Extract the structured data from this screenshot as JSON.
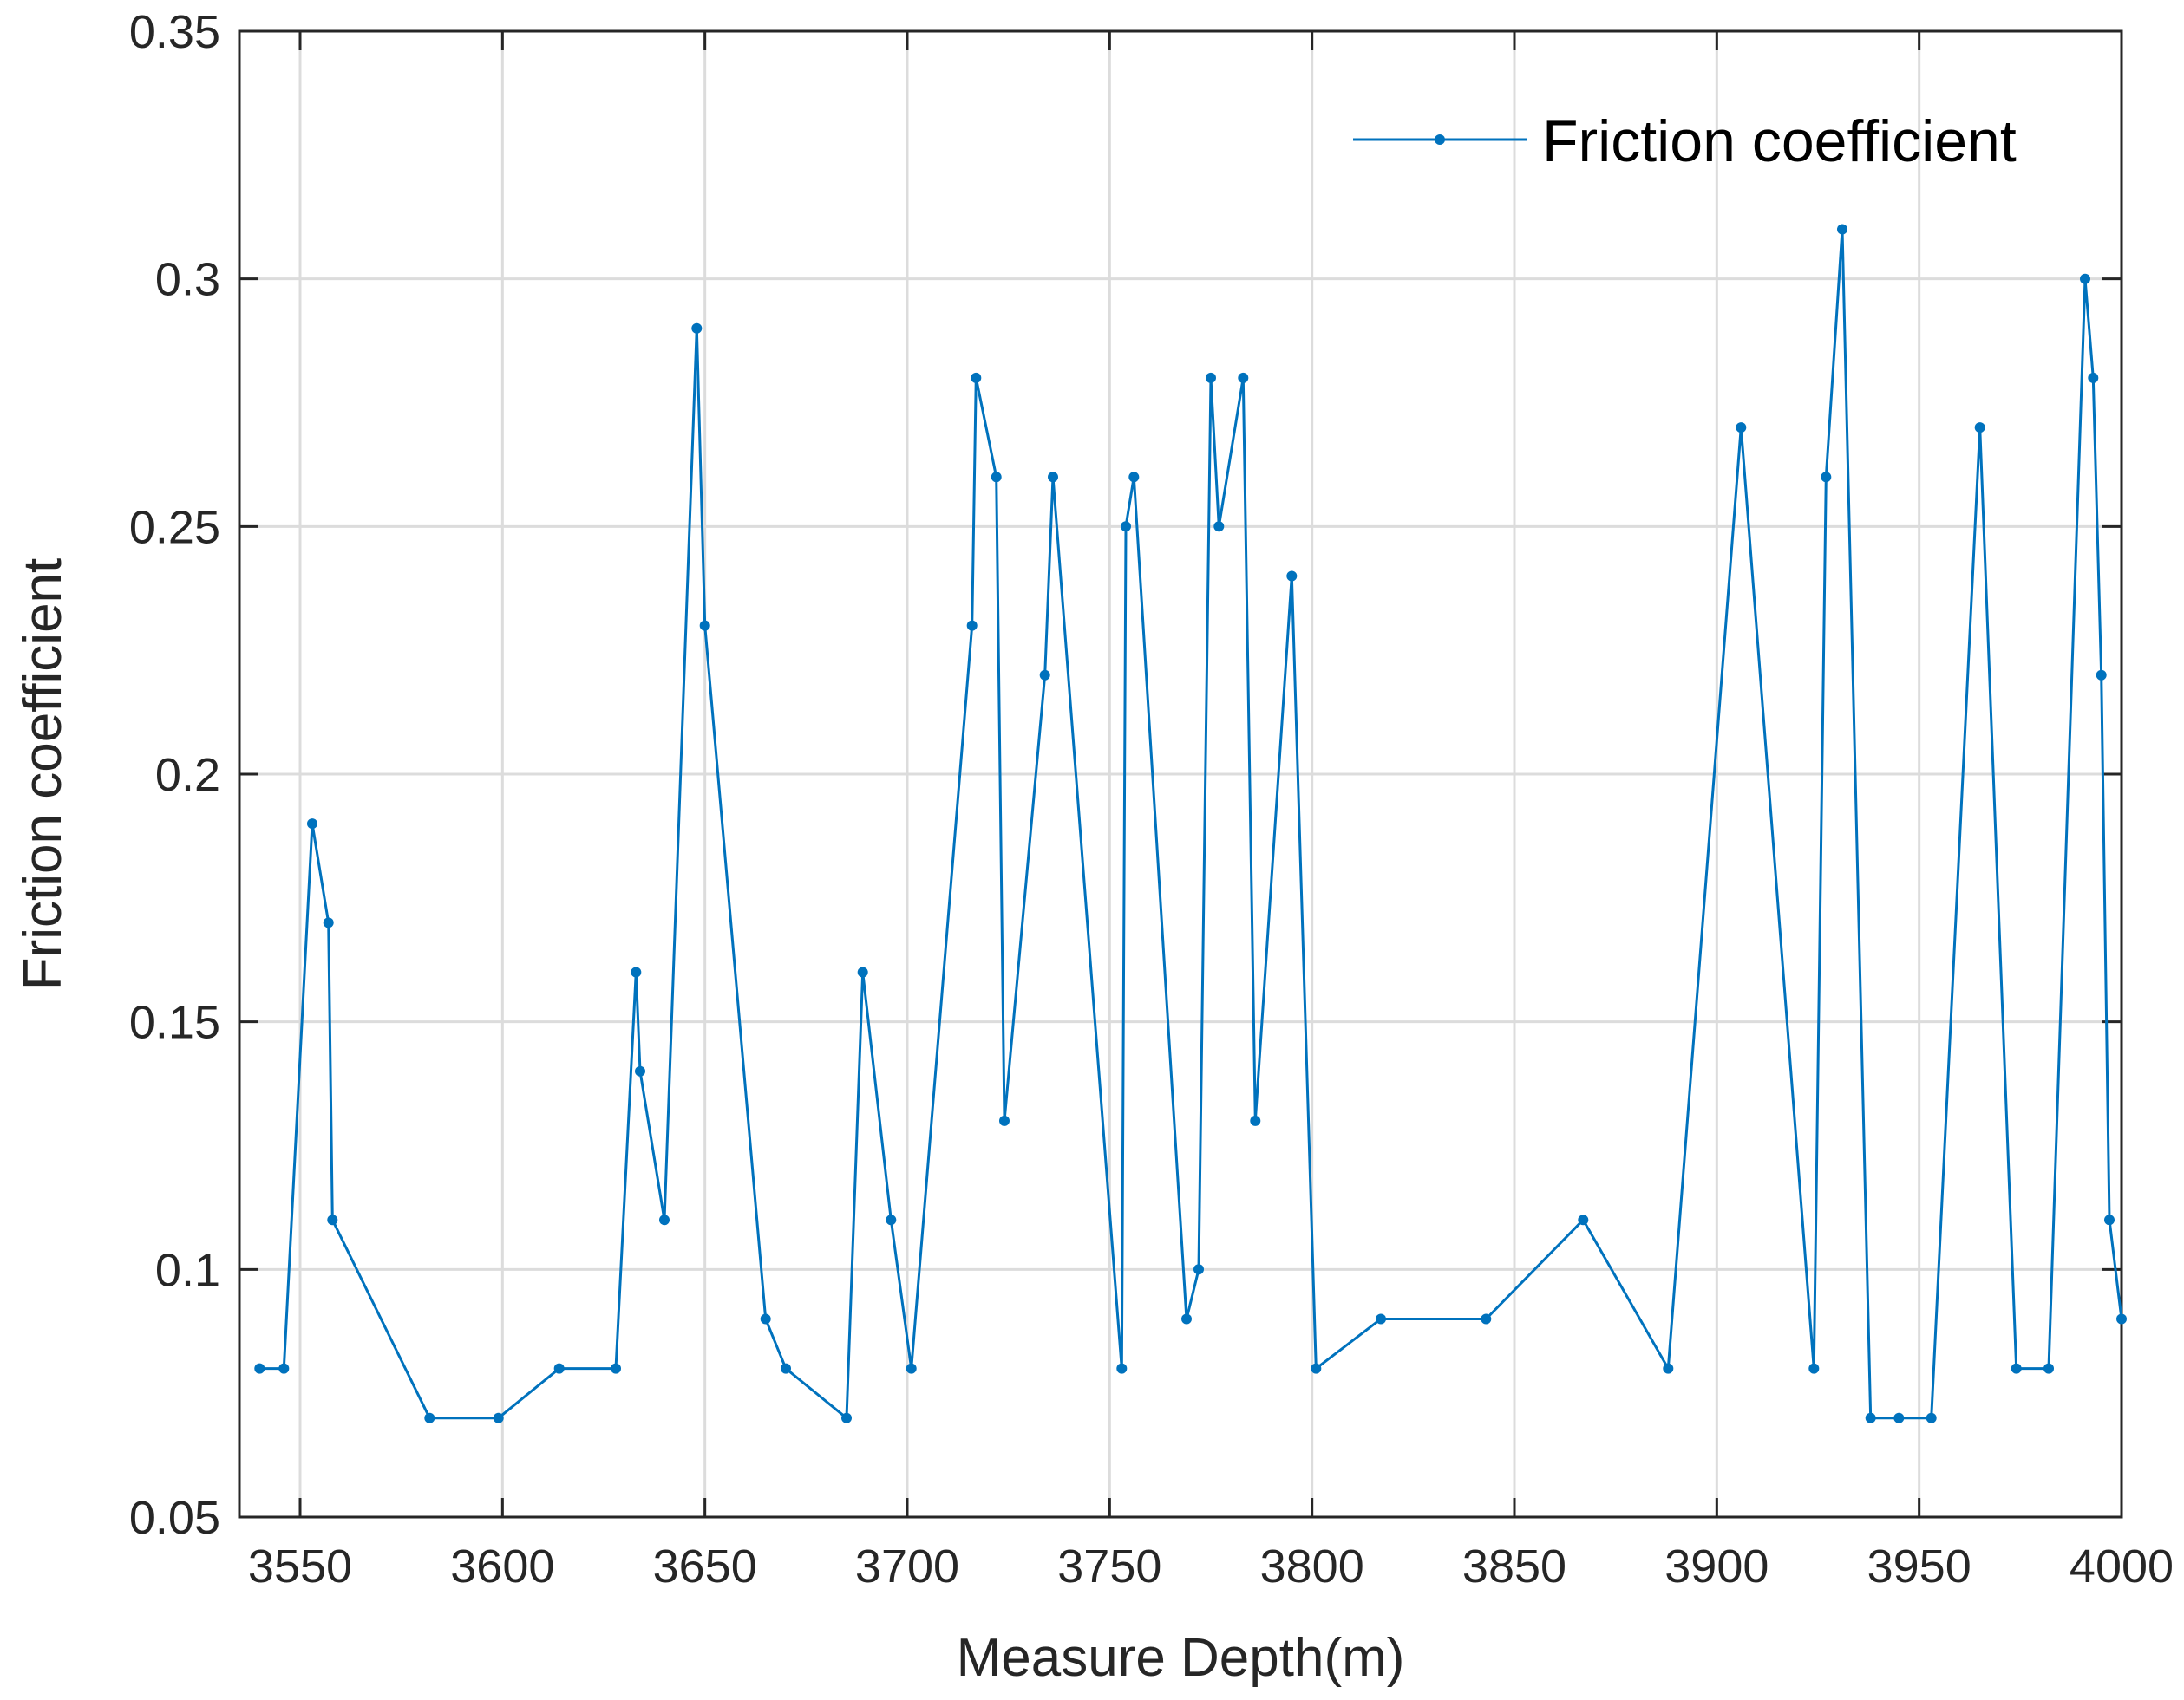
{
  "chart_data": {
    "type": "line",
    "xlabel": "Measure Depth(m)",
    "ylabel": "Friction coefficient",
    "xlim": [
      3535,
      4000
    ],
    "ylim": [
      0.05,
      0.35
    ],
    "xticks": [
      3550,
      3600,
      3650,
      3700,
      3750,
      3800,
      3850,
      3900,
      3950,
      4000
    ],
    "yticks": [
      0.05,
      0.1,
      0.15,
      0.2,
      0.25,
      0.3,
      0.35
    ],
    "xtick_labels": [
      "3550",
      "3600",
      "3650",
      "3700",
      "3750",
      "3800",
      "3850",
      "3900",
      "3950",
      "4000"
    ],
    "ytick_labels": [
      "0.05",
      "0.1",
      "0.15",
      "0.2",
      "0.25",
      "0.3",
      "0.35"
    ],
    "grid": true,
    "legend_position": "top-right",
    "series": [
      {
        "name": "Friction coefficient",
        "color": "#0072bd",
        "marker": "dot",
        "x": [
          3540,
          3546,
          3553,
          3557,
          3558,
          3582,
          3599,
          3614,
          3628,
          3633,
          3634,
          3640,
          3648,
          3650,
          3665,
          3670,
          3685,
          3689,
          3696,
          3701,
          3716,
          3717,
          3722,
          3724,
          3734,
          3736,
          3753,
          3754,
          3756,
          3769,
          3772,
          3775,
          3777,
          3783,
          3786,
          3795,
          3801,
          3817,
          3843,
          3867,
          3888,
          3906,
          3924,
          3927,
          3931,
          3938,
          3945,
          3953,
          3965,
          3974,
          3982,
          3991,
          3993,
          3995,
          3997,
          4000
        ],
        "y": [
          0.08,
          0.08,
          0.19,
          0.17,
          0.11,
          0.07,
          0.07,
          0.08,
          0.08,
          0.16,
          0.14,
          0.11,
          0.29,
          0.23,
          0.09,
          0.08,
          0.07,
          0.16,
          0.11,
          0.08,
          0.23,
          0.28,
          0.26,
          0.13,
          0.22,
          0.26,
          0.08,
          0.25,
          0.26,
          0.09,
          0.1,
          0.28,
          0.25,
          0.28,
          0.13,
          0.24,
          0.08,
          0.09,
          0.09,
          0.11,
          0.08,
          0.27,
          0.08,
          0.26,
          0.31,
          0.07,
          0.07,
          0.07,
          0.27,
          0.08,
          0.08,
          0.3,
          0.28,
          0.22,
          0.11,
          0.09
        ]
      }
    ]
  }
}
